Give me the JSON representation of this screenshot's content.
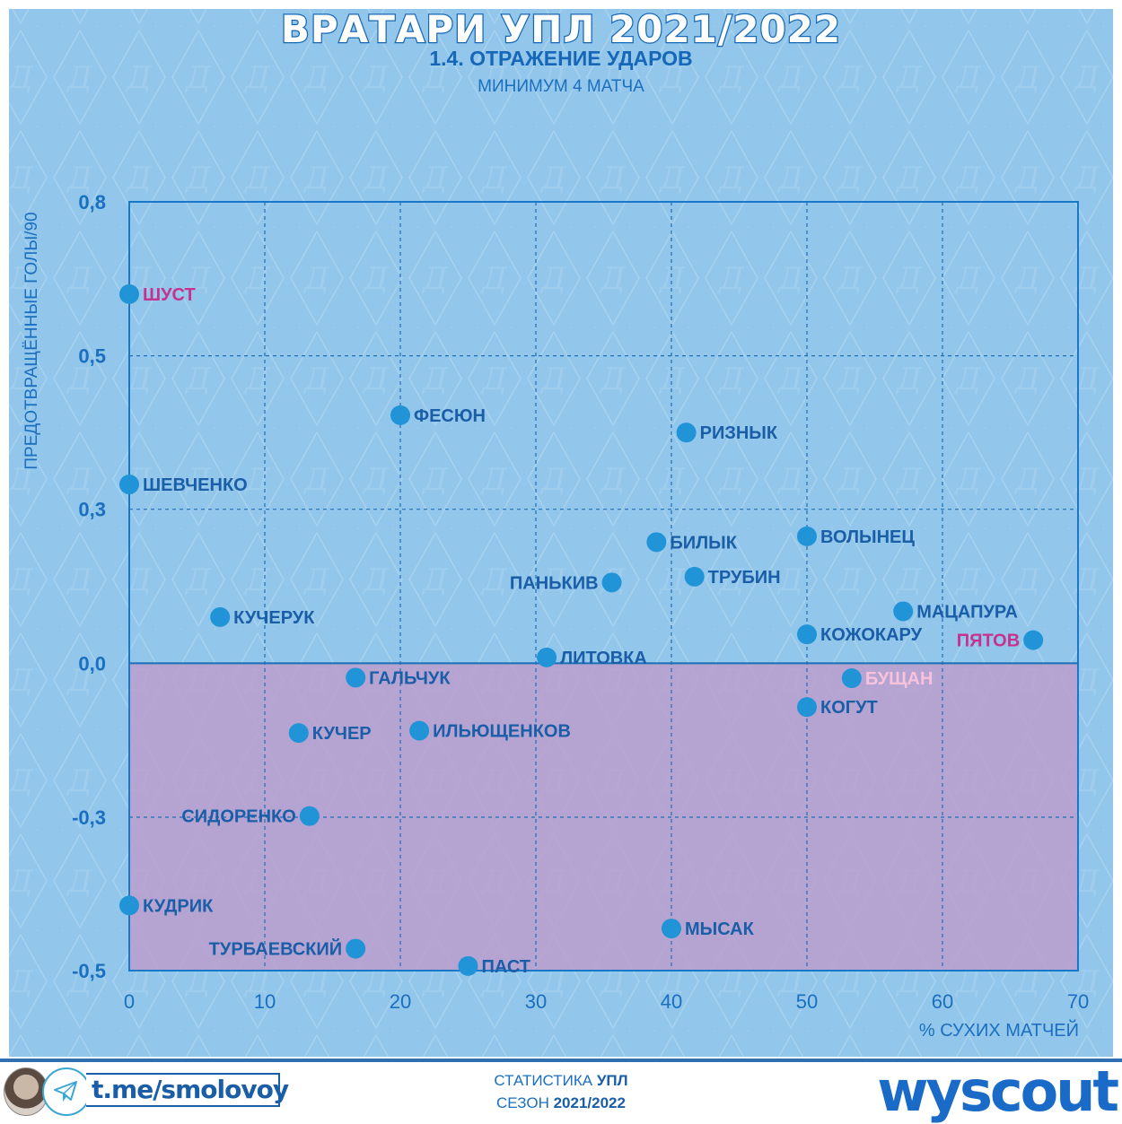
{
  "header": {
    "title": "ВРАТАРИ УПЛ 2021/2022",
    "subtitle": "1.4. ОТРАЖЕНИЕ УДАРОВ",
    "note": "МИНИМУМ 4 МАТЧА"
  },
  "colors": {
    "background": "#92c6ea",
    "point": "#2194d8",
    "label_default": "#1a5ea8",
    "label_highlight": "#c6338e",
    "label_light": "#f7c2dc",
    "negative_region": "#bb9dcc",
    "axis": "#1a6fc0"
  },
  "chart_data": {
    "type": "scatter",
    "title": "1.4. ОТРАЖЕНИЕ УДАРОВ",
    "xlabel": "% СУХИХ МАТЧЕЙ",
    "ylabel": "ПРЕДОТВРАЩЁННЫЕ ГОЛЫ/90",
    "xlim": [
      0,
      70
    ],
    "ylim": [
      -0.533,
      0.8
    ],
    "grid": true,
    "x_ticks": [
      0,
      10,
      20,
      30,
      40,
      50,
      60,
      70
    ],
    "x_tick_labels": [
      "0",
      "10",
      "20",
      "30",
      "40",
      "50",
      "60",
      "70"
    ],
    "y_ticks": [
      0.8,
      0.533,
      0.267,
      0.0,
      -0.267,
      -0.533
    ],
    "y_tick_labels": [
      "0,8",
      "0,5",
      "0,3",
      "0,0",
      "-0,3",
      "-0,5"
    ],
    "shaded_region": {
      "from_y": -0.533,
      "to_y": 0.0,
      "meaning": "below zero"
    },
    "points": [
      {
        "name": "ШУСТ",
        "x": 0.0,
        "y": 0.64,
        "label_side": "right",
        "style": "highlight"
      },
      {
        "name": "ФЕСЮН",
        "x": 20.0,
        "y": 0.43,
        "label_side": "right",
        "style": "default"
      },
      {
        "name": "РИЗНЫК",
        "x": 41.1,
        "y": 0.4,
        "label_side": "right",
        "style": "default"
      },
      {
        "name": "ШЕВЧЕНКО",
        "x": 0.0,
        "y": 0.31,
        "label_side": "right",
        "style": "default"
      },
      {
        "name": "ВОЛЫНЕЦ",
        "x": 50.0,
        "y": 0.22,
        "label_side": "right",
        "style": "default"
      },
      {
        "name": "БИЛЫК",
        "x": 38.9,
        "y": 0.21,
        "label_side": "right",
        "style": "default"
      },
      {
        "name": "ТРУБИН",
        "x": 41.7,
        "y": 0.15,
        "label_side": "right",
        "style": "default"
      },
      {
        "name": "ПАНЬКИВ",
        "x": 35.6,
        "y": 0.14,
        "label_side": "left",
        "style": "default"
      },
      {
        "name": "МАЦАПУРА",
        "x": 57.1,
        "y": 0.09,
        "label_side": "right",
        "style": "default"
      },
      {
        "name": "КУЧЕРУК",
        "x": 6.7,
        "y": 0.08,
        "label_side": "right",
        "style": "default"
      },
      {
        "name": "КОЖОКАРУ",
        "x": 50.0,
        "y": 0.05,
        "label_side": "right",
        "style": "default"
      },
      {
        "name": "ПЯТОВ",
        "x": 66.7,
        "y": 0.04,
        "label_side": "left",
        "style": "highlight"
      },
      {
        "name": "ЛИТОВКА",
        "x": 30.8,
        "y": 0.01,
        "label_side": "right",
        "style": "default"
      },
      {
        "name": "ГАЛЬЧУК",
        "x": 16.7,
        "y": -0.025,
        "label_side": "right",
        "style": "default"
      },
      {
        "name": "БУЩАН",
        "x": 53.3,
        "y": -0.026,
        "label_side": "right",
        "style": "light"
      },
      {
        "name": "КОГУТ",
        "x": 50.0,
        "y": -0.076,
        "label_side": "right",
        "style": "default"
      },
      {
        "name": "ИЛЬЮЩЕНКОВ",
        "x": 21.4,
        "y": -0.117,
        "label_side": "right",
        "style": "default"
      },
      {
        "name": "КУЧЕР",
        "x": 12.5,
        "y": -0.121,
        "label_side": "right",
        "style": "default"
      },
      {
        "name": "СИДОРЕНКО",
        "x": 13.3,
        "y": -0.265,
        "label_side": "left",
        "style": "default"
      },
      {
        "name": "КУДРИК",
        "x": 0.0,
        "y": -0.42,
        "label_side": "right",
        "style": "default"
      },
      {
        "name": "МЫСАК",
        "x": 40.0,
        "y": -0.46,
        "label_side": "right",
        "style": "default"
      },
      {
        "name": "ТУРБАЕВСКИЙ",
        "x": 16.7,
        "y": -0.495,
        "label_side": "left",
        "style": "default"
      },
      {
        "name": "ПАСТ",
        "x": 25.0,
        "y": -0.525,
        "label_side": "right",
        "style": "default"
      }
    ]
  },
  "footer": {
    "telegram_link": "t.me/smolovoy",
    "stats_prefix": "СТАТИСТИКА",
    "stats_league": "УПЛ",
    "season_prefix": "СЕЗОН",
    "season": "2021/2022",
    "brand": "wyscout",
    "icons": [
      "avatar-photo",
      "telegram-icon"
    ]
  }
}
